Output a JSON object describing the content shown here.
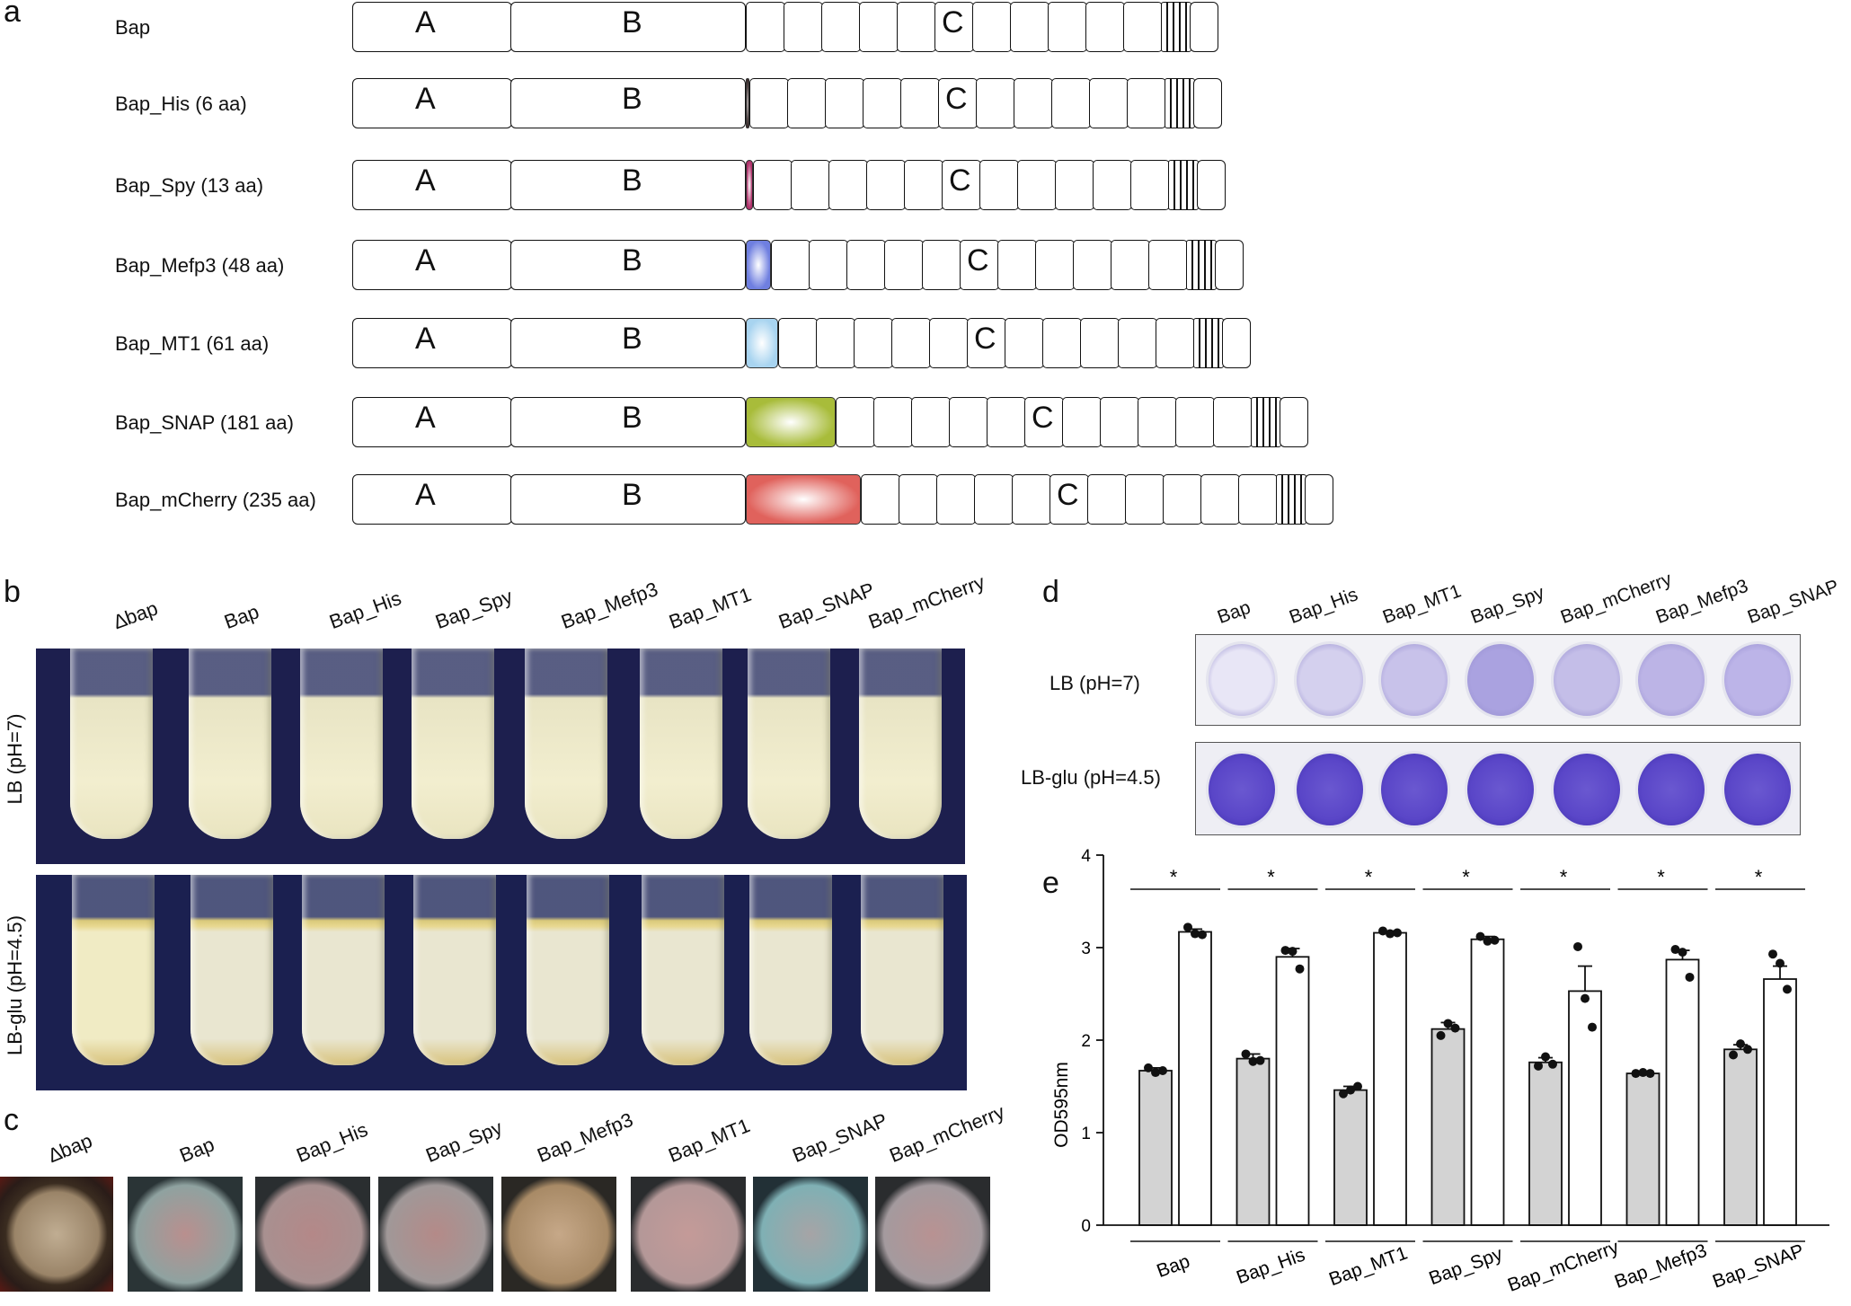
{
  "panels": {
    "a": "a",
    "b": "b",
    "c": "c",
    "d": "d",
    "e": "e"
  },
  "panel_a": {
    "constructs": [
      {
        "label": "Bap",
        "tag_color": ""
      },
      {
        "label": "Bap_His (6 aa)",
        "tag_color": "#3a2a2a"
      },
      {
        "label": "Bap_Spy (13 aa)",
        "tag_color": "#b0306a"
      },
      {
        "label": "Bap_Mefp3 (48 aa)",
        "tag_color": "#6f7fe0"
      },
      {
        "label": "Bap_MT1 (61 aa)",
        "tag_color": "#a8d4f0"
      },
      {
        "label": "Bap_SNAP (181 aa)",
        "tag_color": "#a8bc3a"
      },
      {
        "label": "Bap_mCherry (235 aa)",
        "tag_color": "#e0625c"
      }
    ],
    "domain_a": "A",
    "domain_b": "B",
    "domain_c": "C"
  },
  "panel_b": {
    "columns": [
      "∆bap",
      "Bap",
      "Bap_His",
      "Bap_Spy",
      "Bap_Mefp3",
      "Bap_MT1",
      "Bap_SNAP",
      "Bap_mCherry"
    ],
    "row_top": "LB (pH=7)",
    "row_bottom": "LB-glu (pH=4.5)"
  },
  "panel_c": {
    "columns": [
      "∆bap",
      "Bap",
      "Bap_His",
      "Bap_Spy",
      "Bap_Mefp3",
      "Bap_MT1",
      "Bap_SNAP",
      "Bap_mCherry"
    ]
  },
  "panel_d": {
    "columns": [
      "Bap",
      "Bap_His",
      "Bap_MT1",
      "Bap_Spy",
      "Bap_mCherry",
      "Bap_Mefp3",
      "Bap_SNAP"
    ],
    "row_top": "LB (pH=7)",
    "row_bottom": "LB-glu (pH=4.5)"
  },
  "chart_data": {
    "type": "bar",
    "title": "",
    "xlabel": "",
    "ylabel": "OD595nm",
    "ylim": [
      0,
      4
    ],
    "yticks": [
      "0",
      "1",
      "2",
      "3",
      "4"
    ],
    "categories": [
      "Bap",
      "Bap_His",
      "Bap_MT1",
      "Bap_Spy",
      "Bap_mCherry",
      "Bap_Mefp3",
      "Bap_SNAP"
    ],
    "series": [
      {
        "values": [
          1.67,
          1.8,
          1.46,
          2.12,
          1.76,
          1.64,
          1.9
        ],
        "color": "#d3d3d3",
        "errors": [
          0.03,
          0.05,
          0.04,
          0.07,
          0.05,
          0.01,
          0.05
        ],
        "points": [
          [
            1.7,
            1.65,
            1.67
          ],
          [
            1.85,
            1.77,
            1.78
          ],
          [
            1.42,
            1.46,
            1.5
          ],
          [
            2.05,
            2.18,
            2.13
          ],
          [
            1.72,
            1.82,
            1.74
          ],
          [
            1.64,
            1.65,
            1.64
          ],
          [
            1.84,
            1.96,
            1.9
          ]
        ]
      },
      {
        "values": [
          3.17,
          2.9,
          3.16,
          3.09,
          2.53,
          2.87,
          2.66
        ],
        "color": "#ffffff",
        "errors": [
          0.03,
          0.09,
          0.02,
          0.03,
          0.27,
          0.1,
          0.14
        ],
        "points": [
          [
            3.22,
            3.15,
            3.14
          ],
          [
            2.97,
            2.96,
            2.77
          ],
          [
            3.18,
            3.15,
            3.16
          ],
          [
            3.12,
            3.07,
            3.08
          ],
          [
            3.01,
            2.45,
            2.14
          ],
          [
            2.98,
            2.95,
            2.68
          ],
          [
            2.93,
            2.83,
            2.55
          ]
        ]
      }
    ],
    "significance": [
      "*",
      "*",
      "*",
      "*",
      "*",
      "*",
      "*"
    ]
  }
}
